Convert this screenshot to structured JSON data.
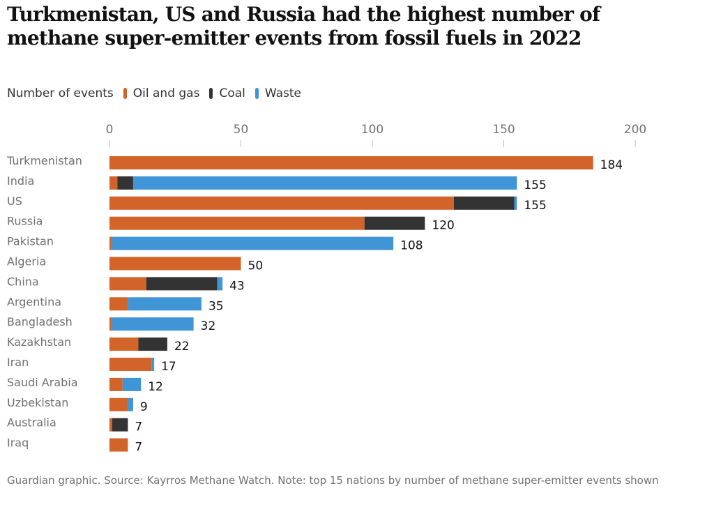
{
  "title": "Turkmenistan, US and Russia had the highest number of methane super-emitter events from fossil fuels in 2022",
  "legend": {
    "label": "Number of events",
    "items": [
      {
        "name": "Oil and gas",
        "color": "#d2642a"
      },
      {
        "name": "Coal",
        "color": "#333333"
      },
      {
        "name": "Waste",
        "color": "#3f95d6"
      }
    ]
  },
  "footer": "Guardian graphic. Source: Kayrros Methane Watch. Note: top 15 nations by number of methane super-emitter events shown",
  "chart_data": {
    "type": "bar",
    "orientation": "horizontal",
    "stacked": true,
    "title": "Turkmenistan, US and Russia had the highest number of methane super-emitter events from fossil fuels in 2022",
    "xlabel": "Number of events",
    "ylabel": "",
    "xlim": [
      0,
      200
    ],
    "xticks": [
      0,
      50,
      100,
      150,
      200
    ],
    "grid": false,
    "legend_position": "top-left",
    "categories": [
      "Turkmenistan",
      "India",
      "US",
      "Russia",
      "Pakistan",
      "Algeria",
      "China",
      "Argentina",
      "Bangladesh",
      "Kazakhstan",
      "Iran",
      "Saudi Arabia",
      "Uzbekistan",
      "Australia",
      "Iraq"
    ],
    "series": [
      {
        "name": "Oil and gas",
        "color": "#d2642a",
        "values": [
          184,
          3,
          131,
          97,
          1,
          50,
          14,
          7,
          1,
          11,
          16,
          5,
          7,
          1,
          7
        ]
      },
      {
        "name": "Coal",
        "color": "#333333",
        "values": [
          0,
          6,
          23,
          23,
          0,
          0,
          27,
          0,
          0,
          11,
          0,
          0,
          0,
          6,
          0
        ]
      },
      {
        "name": "Waste",
        "color": "#3f95d6",
        "values": [
          0,
          146,
          1,
          0,
          107,
          0,
          2,
          28,
          31,
          0,
          1,
          7,
          2,
          0,
          0
        ]
      }
    ],
    "totals": [
      184,
      155,
      155,
      120,
      108,
      50,
      43,
      35,
      32,
      22,
      17,
      12,
      9,
      7,
      7
    ]
  }
}
